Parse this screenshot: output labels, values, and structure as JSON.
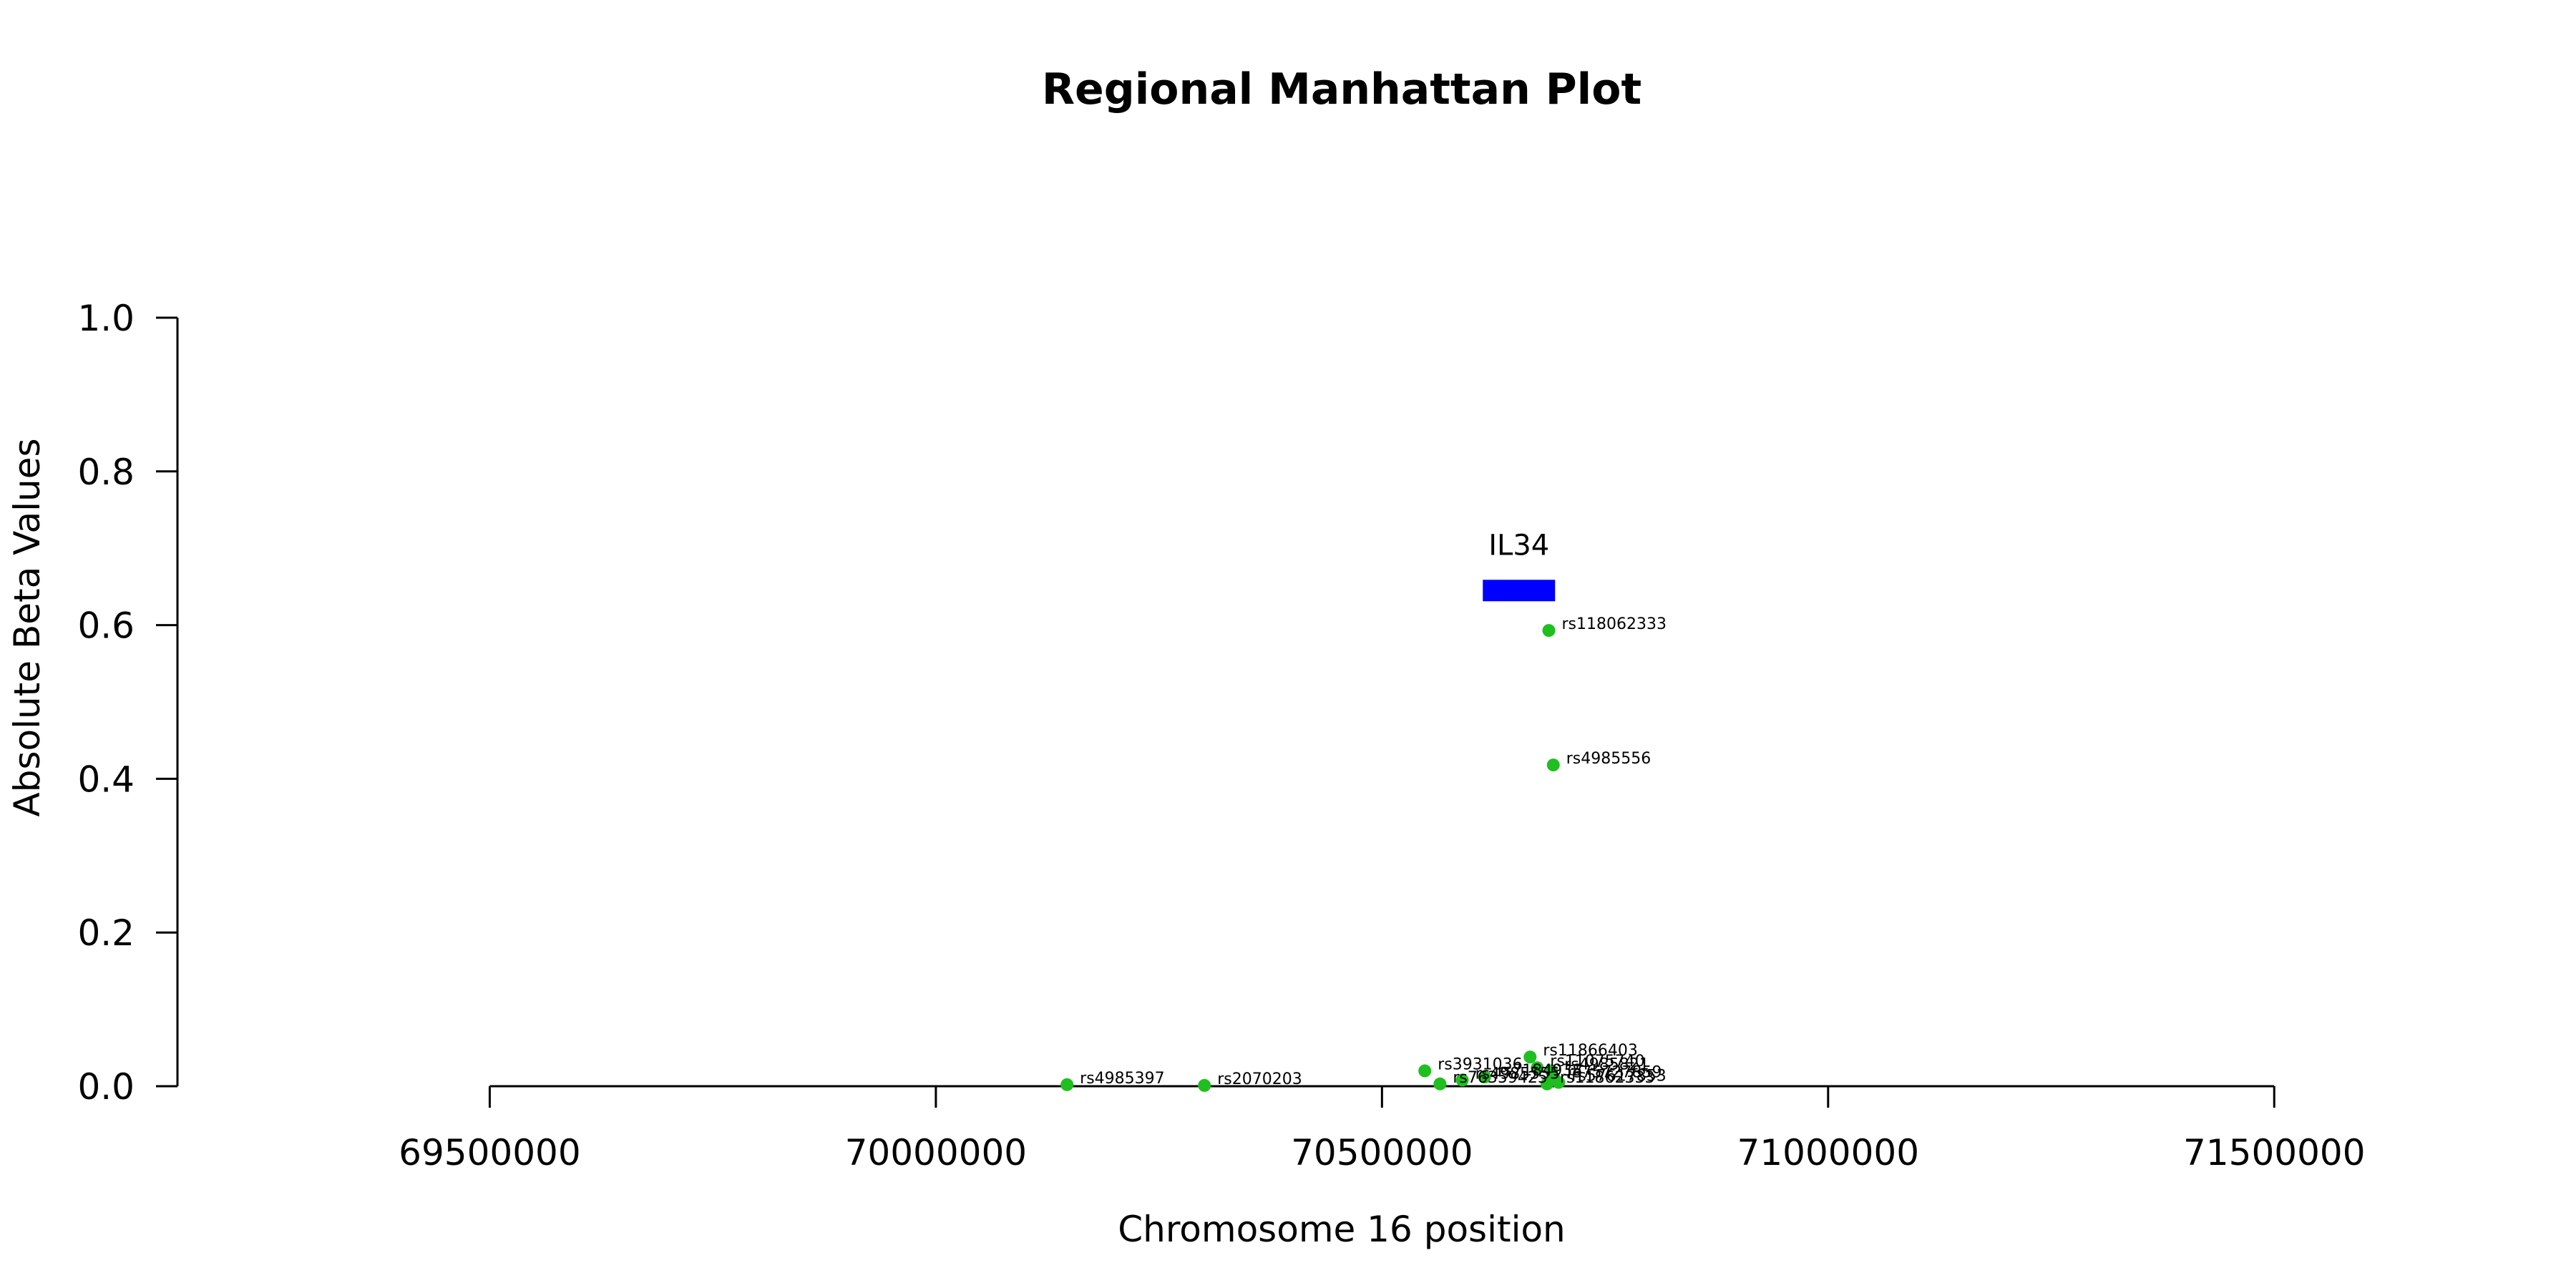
{
  "chart_data": {
    "type": "scatter",
    "title": "Regional Manhattan Plot",
    "xlabel": "Chromosome 16 position",
    "ylabel": "Absolute Beta Values",
    "xlim": [
      69150000,
      71750000
    ],
    "ylim": [
      0,
      1
    ],
    "x_ticks": [
      69500000,
      70000000,
      70500000,
      71000000,
      71500000
    ],
    "x_tick_labels": [
      "69500000",
      "70000000",
      "70500000",
      "71000000",
      "71500000"
    ],
    "y_ticks": [
      0,
      0.2,
      0.4,
      0.6,
      0.8,
      1.0
    ],
    "y_tick_labels": [
      "0.0",
      "0.2",
      "0.4",
      "0.6",
      "0.8",
      "1.0"
    ],
    "grid": false,
    "point_color": "#1fbf1f",
    "gene_color": "#0000ff",
    "genes": [
      {
        "name": "IL34",
        "start": 70613000,
        "end": 70694000,
        "y": 0.645
      }
    ],
    "points": [
      {
        "label": "rs4985397",
        "x": 70147000,
        "y": 0.002
      },
      {
        "label": "rs2070203",
        "x": 70301000,
        "y": 0.001
      },
      {
        "label": "rs3931036",
        "x": 70548000,
        "y": 0.02
      },
      {
        "label": "rs76359425",
        "x": 70565000,
        "y": 0.003
      },
      {
        "label": "rs4985555",
        "x": 70590000,
        "y": 0.008
      },
      {
        "label": "rs7184938",
        "x": 70615000,
        "y": 0.012
      },
      {
        "label": "rs11866403",
        "x": 70666000,
        "y": 0.038
      },
      {
        "label": "rs11075740",
        "x": 70674000,
        "y": 0.024
      },
      {
        "label": "rs4985821",
        "x": 70690000,
        "y": 0.02
      },
      {
        "label": "rs11862333",
        "x": 70685000,
        "y": 0.003
      },
      {
        "label": "rs75727859",
        "x": 70693000,
        "y": 0.01
      },
      {
        "label": "rs57617853",
        "x": 70698000,
        "y": 0.005
      },
      {
        "label": "rs118062333",
        "x": 70687000,
        "y": 0.593
      },
      {
        "label": "rs4985556",
        "x": 70692000,
        "y": 0.418
      }
    ]
  }
}
